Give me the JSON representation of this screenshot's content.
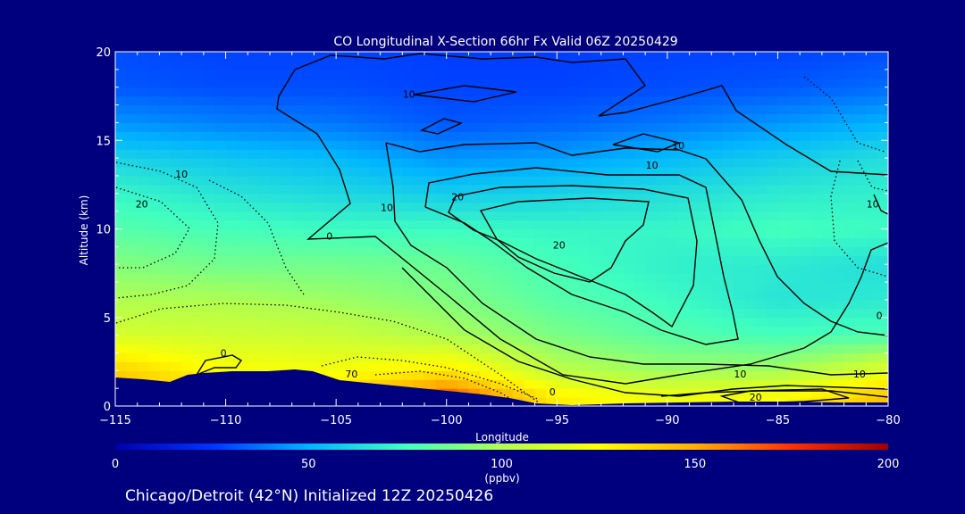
{
  "chart_data": {
    "type": "heatmap",
    "title": "CO Longitudinal X-Section 66hr  Fx Valid 06Z 20250429",
    "subtitle": "Chicago/Detroit (42°N) Initialized 12Z 20250426",
    "xlabel": "Longitude",
    "ylabel": "Altitude (km)",
    "xlim": [
      -115,
      -80
    ],
    "ylim": [
      0,
      20
    ],
    "x_ticks": [
      -115,
      -110,
      -105,
      -100,
      -95,
      -90,
      -85,
      -80
    ],
    "x_tick_labels": [
      "−115",
      "−110",
      "−105",
      "−100",
      "−95",
      "−90",
      "−85",
      "−80"
    ],
    "y_ticks": [
      0,
      5,
      10,
      15,
      20
    ],
    "y_tick_labels": [
      "0",
      "5",
      "10",
      "15",
      "20"
    ],
    "colorbar": {
      "label": "(ppbv)",
      "range": [
        0,
        200
      ],
      "ticks": [
        0,
        50,
        100,
        150,
        200
      ],
      "tick_labels": [
        "0",
        "50",
        "100",
        "150",
        "200"
      ]
    },
    "field_grid": {
      "lons": [
        -115,
        -110,
        -105,
        -100,
        -95,
        -90,
        -85,
        -80
      ],
      "alts": [
        20,
        18,
        16,
        14,
        12,
        10,
        8,
        6,
        4,
        2,
        0.5
      ],
      "co_ppbv": [
        [
          30,
          28,
          28,
          27,
          27,
          28,
          28,
          30
        ],
        [
          32,
          30,
          30,
          28,
          28,
          30,
          32,
          36
        ],
        [
          44,
          40,
          38,
          32,
          34,
          38,
          44,
          50
        ],
        [
          60,
          56,
          52,
          44,
          46,
          52,
          58,
          64
        ],
        [
          72,
          66,
          62,
          58,
          60,
          64,
          68,
          70
        ],
        [
          80,
          76,
          74,
          74,
          72,
          72,
          76,
          74
        ],
        [
          90,
          86,
          86,
          84,
          76,
          70,
          68,
          64
        ],
        [
          100,
          100,
          96,
          90,
          80,
          74,
          66,
          68
        ],
        [
          112,
          110,
          108,
          100,
          88,
          80,
          76,
          78
        ],
        [
          140,
          124,
          122,
          132,
          104,
          96,
          98,
          116
        ],
        [
          150,
          140,
          140,
          172,
          130,
          120,
          125,
          145
        ]
      ]
    },
    "contour_labels": [
      {
        "text": "10",
        "lon": -101.7,
        "alt": 17.4
      },
      {
        "text": "10",
        "lon": -89.5,
        "alt": 14.5
      },
      {
        "text": "10",
        "lon": -90.7,
        "alt": 13.4
      },
      {
        "text": "10",
        "lon": -112.0,
        "alt": 12.9
      },
      {
        "text": "20",
        "lon": -113.8,
        "alt": 11.2
      },
      {
        "text": "10",
        "lon": -80.7,
        "alt": 11.2
      },
      {
        "text": "10",
        "lon": -102.7,
        "alt": 11.0
      },
      {
        "text": "20",
        "lon": -99.5,
        "alt": 11.6
      },
      {
        "text": "0",
        "lon": -105.3,
        "alt": 9.4
      },
      {
        "text": "20",
        "lon": -94.9,
        "alt": 8.9
      },
      {
        "text": "0",
        "lon": -80.4,
        "alt": 4.9
      },
      {
        "text": "0",
        "lon": -110.1,
        "alt": 2.8
      },
      {
        "text": "70",
        "lon": -104.3,
        "alt": 1.6
      },
      {
        "text": "10",
        "lon": -86.7,
        "alt": 1.6
      },
      {
        "text": "10",
        "lon": -81.3,
        "alt": 1.6
      },
      {
        "text": "0",
        "lon": -95.2,
        "alt": 0.6
      },
      {
        "text": "20",
        "lon": -86.0,
        "alt": 0.3
      }
    ],
    "grid": false,
    "legend": "none"
  },
  "colors": {
    "background": "#00007f",
    "terrain": "#00007f",
    "text": "#ffffff",
    "contour": "#000000",
    "colormap": [
      "#0000aa",
      "#0033ff",
      "#00b4ff",
      "#40ffbf",
      "#b0ff50",
      "#ffff00",
      "#ffb000",
      "#ff3000",
      "#a00000"
    ]
  }
}
